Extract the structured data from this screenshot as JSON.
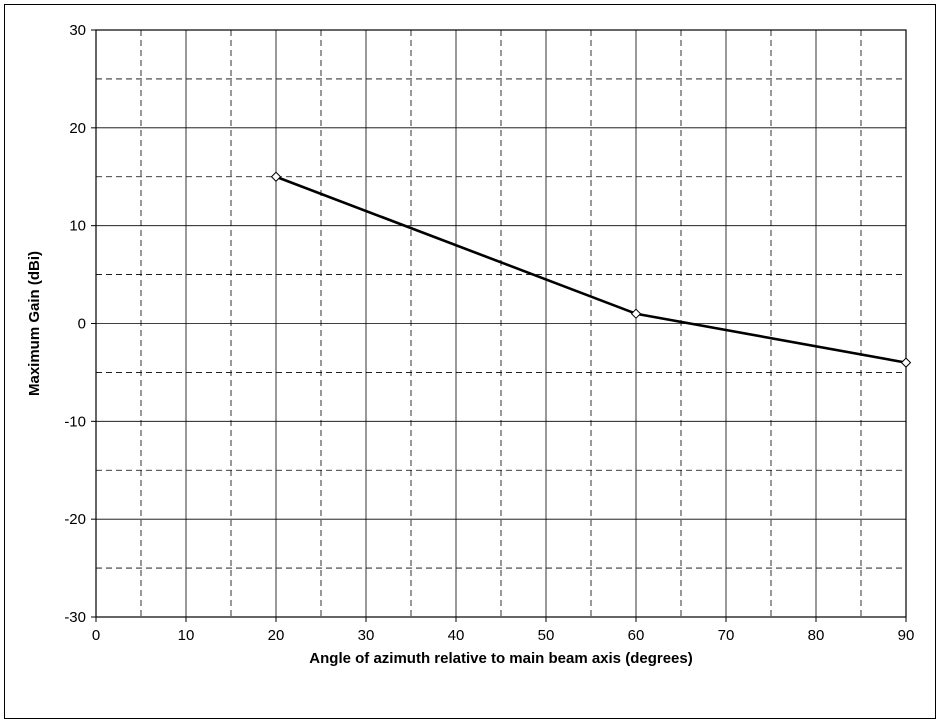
{
  "chart_data": {
    "type": "line",
    "title": "",
    "xlabel": "Angle of azimuth relative to main beam axis (degrees)",
    "ylabel": "Maximum Gain (dBi)",
    "xlim": [
      0,
      90
    ],
    "ylim": [
      -30,
      30
    ],
    "x_ticks": [
      0,
      10,
      20,
      30,
      40,
      50,
      60,
      70,
      80,
      90
    ],
    "y_ticks": [
      -30,
      -20,
      -10,
      0,
      10,
      20,
      30
    ],
    "x_minor_gridlines": [
      5,
      15,
      25,
      35,
      45,
      55,
      65,
      75,
      85
    ],
    "y_minor_gridlines": [
      -25,
      -15,
      -5,
      5,
      15,
      25
    ],
    "major_grid": "solid",
    "minor_grid": "dashed",
    "legend": "none",
    "series": [
      {
        "x": [
          20,
          60,
          90
        ],
        "y": [
          15,
          1,
          -4
        ],
        "color": "#000000",
        "marker": "diamond-open"
      }
    ]
  }
}
